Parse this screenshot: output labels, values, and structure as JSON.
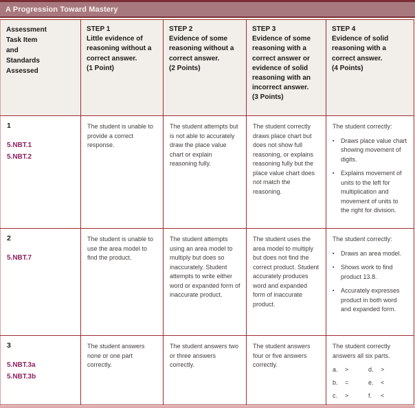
{
  "title": "A Progression Toward Mastery",
  "colors": {
    "band_background": "#a7797e",
    "band_border": "#7b2c35",
    "table_border": "#9e2b2e",
    "header_cell_background": "#f2eee9",
    "standards_text": "#8e2160",
    "body_text": "#3f3c3a",
    "bottom_strip": "#dda6aa"
  },
  "table": {
    "header": {
      "col0_lines": [
        "Assessment",
        "Task Item",
        "and",
        "Standards",
        "Assessed"
      ],
      "steps": [
        {
          "name": "STEP 1",
          "desc": "Little evidence of reasoning without a correct answer.",
          "points": "(1 Point)"
        },
        {
          "name": "STEP 2",
          "desc": "Evidence of some reasoning without a correct answer.",
          "points": "(2 Points)"
        },
        {
          "name": "STEP 3",
          "desc": "Evidence of some reasoning with a correct answer or evidence of solid reasoning with an incorrect answer.",
          "points": "(3 Points)"
        },
        {
          "name": "STEP 4",
          "desc": "Evidence of solid reasoning with a correct answer.",
          "points": "(4 Points)"
        }
      ]
    },
    "rows": [
      {
        "item": "1",
        "standards": [
          "5.NBT.1",
          "5.NBT.2"
        ],
        "step1": "The student is unable to provide a correct response.",
        "step2": "The student attempts but is not able to accurately draw the place value chart or explain reasoning fully.",
        "step3": "The student correctly draws place chart but does not show full reasoning, or explains reasoning fully but the place value chart does not match the reasoning.",
        "step4_intro": "The student correctly:",
        "step4_bullets": [
          "Draws place value chart showing movement of digits.",
          "Explains movement of units to the left for multiplication and movement of units to the right for division."
        ]
      },
      {
        "item": "2",
        "standards": [
          "5.NBT.7"
        ],
        "step1": "The student is unable to use the area model to find the product.",
        "step2": "The student attempts using an area model to multiply but does so inaccurately.  Student attempts to write either word or expanded form of inaccurate product.",
        "step3": "The student uses the area model to multiply but does not find the correct product. Student accurately produces word and expanded form of inaccurate product.",
        "step4_intro": "The student correctly:",
        "step4_bullets": [
          "Draws an area model.",
          "Shows work to find product 13.8.",
          "Accurately expresses product in both word and expanded form."
        ]
      },
      {
        "item": "3",
        "standards": [
          "5.NBT.3a",
          "5.NBT.3b"
        ],
        "step1": "The student answers none or one part correctly.",
        "step2": "The student answers two or three answers correctly.",
        "step3": "The student answers four or five answers correctly.",
        "step4_intro": "The student correctly answers all six parts.",
        "answers": [
          {
            "label": "a.",
            "value": ">"
          },
          {
            "label": "d.",
            "value": ">"
          },
          {
            "label": "b.",
            "value": "="
          },
          {
            "label": "e.",
            "value": "<"
          },
          {
            "label": "c.",
            "value": ">"
          },
          {
            "label": "f.",
            "value": "<"
          }
        ]
      }
    ]
  }
}
